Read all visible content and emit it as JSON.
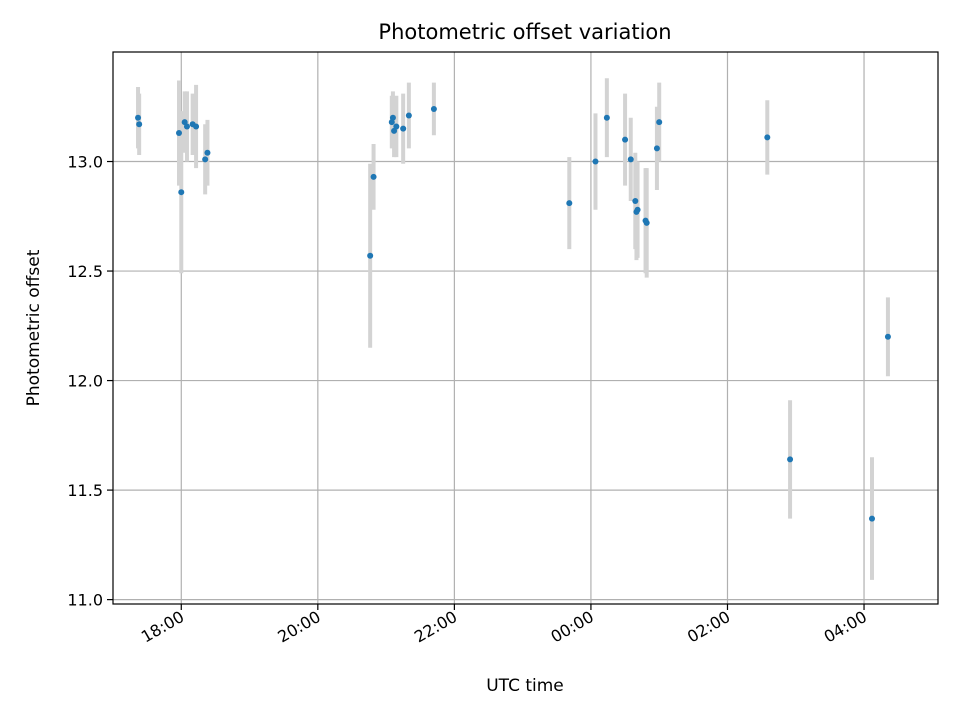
{
  "chart_data": {
    "type": "scatter",
    "title": "Photometric offset variation",
    "xlabel": "UTC time",
    "ylabel": "Photometric offset",
    "xlim": [
      "17:00",
      "05:05"
    ],
    "ylim": [
      10.98,
      13.5
    ],
    "grid": true,
    "x_ticks": [
      "18:00",
      "20:00",
      "22:00",
      "00:00",
      "02:00",
      "04:00"
    ],
    "y_ticks": [
      "11.0",
      "11.5",
      "12.0",
      "12.5",
      "13.0"
    ],
    "colors": {
      "marker": "#1f77b4",
      "errorbar": "#d3d3d3"
    },
    "points": [
      {
        "x": "17:22",
        "y": 13.2,
        "err": 0.14
      },
      {
        "x": "17:23",
        "y": 13.17,
        "err": 0.14
      },
      {
        "x": "17:58",
        "y": 13.13,
        "err": 0.24
      },
      {
        "x": "18:00",
        "y": 12.86,
        "err": 0.37
      },
      {
        "x": "18:03",
        "y": 13.18,
        "err": 0.14
      },
      {
        "x": "18:05",
        "y": 13.16,
        "err": 0.16
      },
      {
        "x": "18:10",
        "y": 13.17,
        "err": 0.14
      },
      {
        "x": "18:13",
        "y": 13.16,
        "err": 0.19
      },
      {
        "x": "18:21",
        "y": 13.01,
        "err": 0.16
      },
      {
        "x": "18:23",
        "y": 13.04,
        "err": 0.15
      },
      {
        "x": "20:46",
        "y": 12.57,
        "err": 0.42
      },
      {
        "x": "20:49",
        "y": 12.93,
        "err": 0.15
      },
      {
        "x": "21:05",
        "y": 13.18,
        "err": 0.12
      },
      {
        "x": "21:06",
        "y": 13.2,
        "err": 0.12
      },
      {
        "x": "21:07",
        "y": 13.14,
        "err": 0.12
      },
      {
        "x": "21:09",
        "y": 13.16,
        "err": 0.14
      },
      {
        "x": "21:15",
        "y": 13.15,
        "err": 0.16
      },
      {
        "x": "21:20",
        "y": 13.21,
        "err": 0.15
      },
      {
        "x": "21:42",
        "y": 13.24,
        "err": 0.12
      },
      {
        "x": "23:41",
        "y": 12.81,
        "err": 0.21
      },
      {
        "x": "00:04",
        "y": 13.0,
        "err": 0.22
      },
      {
        "x": "00:14",
        "y": 13.2,
        "err": 0.18
      },
      {
        "x": "00:30",
        "y": 13.1,
        "err": 0.21
      },
      {
        "x": "00:35",
        "y": 13.01,
        "err": 0.19
      },
      {
        "x": "00:39",
        "y": 12.82,
        "err": 0.22
      },
      {
        "x": "00:40",
        "y": 12.77,
        "err": 0.22
      },
      {
        "x": "00:41",
        "y": 12.78,
        "err": 0.22
      },
      {
        "x": "00:48",
        "y": 12.73,
        "err": 0.24
      },
      {
        "x": "00:49",
        "y": 12.72,
        "err": 0.25
      },
      {
        "x": "00:58",
        "y": 13.06,
        "err": 0.19
      },
      {
        "x": "01:00",
        "y": 13.18,
        "err": 0.18
      },
      {
        "x": "02:35",
        "y": 13.11,
        "err": 0.17
      },
      {
        "x": "02:55",
        "y": 11.64,
        "err": 0.27
      },
      {
        "x": "04:07",
        "y": 11.37,
        "err": 0.28
      },
      {
        "x": "04:21",
        "y": 12.2,
        "err": 0.18
      }
    ]
  }
}
